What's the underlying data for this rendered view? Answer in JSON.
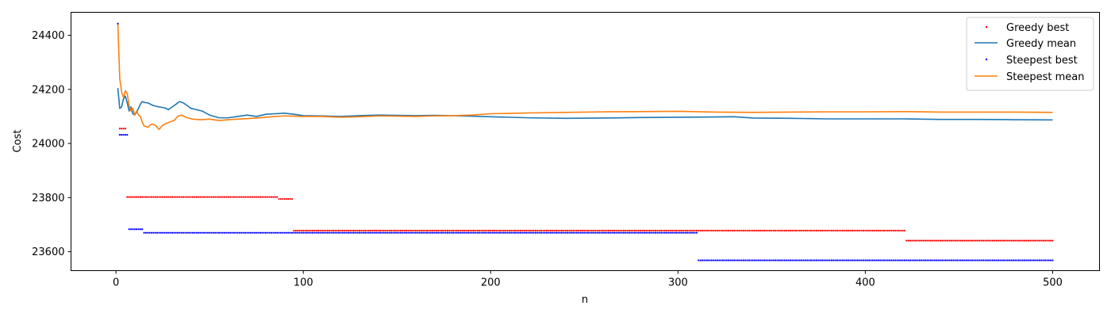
{
  "chart_data": {
    "type": "line",
    "xlabel": "n",
    "ylabel": "Cost",
    "xlim": [
      -24,
      525
    ],
    "ylim": [
      23530,
      24485
    ],
    "xticks": [
      0,
      100,
      200,
      300,
      400,
      500
    ],
    "yticks": [
      23600,
      23800,
      24000,
      24200,
      24400
    ],
    "grid": false,
    "legend_position": "top-right",
    "series": [
      {
        "name": "Greedy best",
        "kind": "points",
        "color": "#ff0000",
        "steps": [
          {
            "from": 1,
            "to": 1,
            "value": 24443
          },
          {
            "from": 2,
            "to": 5,
            "value": 24055
          },
          {
            "from": 6,
            "to": 86,
            "value": 23802
          },
          {
            "from": 87,
            "to": 94,
            "value": 23795
          },
          {
            "from": 95,
            "to": 421,
            "value": 23678
          },
          {
            "from": 422,
            "to": 500,
            "value": 23641
          }
        ]
      },
      {
        "name": "Greedy mean",
        "kind": "line",
        "color": "#1f77b4",
        "x": [
          1,
          2,
          3,
          4,
          5,
          6,
          7,
          8,
          9,
          10,
          11,
          12,
          13,
          14,
          15,
          17,
          20,
          23,
          26,
          28,
          30,
          32,
          34,
          36,
          38,
          40,
          43,
          46,
          50,
          55,
          60,
          65,
          70,
          75,
          80,
          85,
          90,
          95,
          100,
          110,
          120,
          130,
          140,
          150,
          160,
          170,
          180,
          190,
          200,
          220,
          240,
          260,
          280,
          300,
          320,
          330,
          340,
          360,
          380,
          400,
          420,
          440,
          460,
          480,
          500
        ],
        "y": [
          24205,
          24130,
          24135,
          24165,
          24175,
          24150,
          24120,
          24135,
          24110,
          24105,
          24115,
          24130,
          24145,
          24155,
          24152,
          24150,
          24140,
          24135,
          24132,
          24125,
          24135,
          24145,
          24155,
          24150,
          24140,
          24130,
          24125,
          24120,
          24105,
          24095,
          24095,
          24100,
          24105,
          24100,
          24108,
          24110,
          24112,
          24108,
          24103,
          24102,
          24100,
          24103,
          24105,
          24104,
          24103,
          24104,
          24103,
          24101,
          24099,
          24095,
          24093,
          24094,
          24096,
          24097,
          24098,
          24099,
          24094,
          24093,
          24091,
          24091,
          24091,
          24089,
          24089,
          24088,
          24087
        ]
      },
      {
        "name": "Steepest best",
        "kind": "points",
        "color": "#0000ff",
        "steps": [
          {
            "from": 1,
            "to": 1,
            "value": 24443
          },
          {
            "from": 2,
            "to": 6,
            "value": 24032
          },
          {
            "from": 7,
            "to": 14,
            "value": 23683
          },
          {
            "from": 15,
            "to": 310,
            "value": 23670
          },
          {
            "from": 311,
            "to": 500,
            "value": 23568
          }
        ]
      },
      {
        "name": "Steepest mean",
        "kind": "line",
        "color": "#ff7f0e",
        "x": [
          1,
          2,
          3,
          4,
          5,
          6,
          7,
          8,
          9,
          10,
          11,
          12,
          13,
          14,
          15,
          17,
          19,
          21,
          23,
          25,
          27,
          29,
          31,
          33,
          35,
          38,
          41,
          45,
          50,
          55,
          60,
          65,
          70,
          75,
          80,
          85,
          90,
          95,
          100,
          110,
          120,
          130,
          140,
          150,
          160,
          170,
          180,
          190,
          200,
          220,
          240,
          260,
          280,
          300,
          320,
          340,
          360,
          380,
          400,
          420,
          440,
          460,
          480,
          500
        ],
        "y": [
          24440,
          24240,
          24190,
          24170,
          24195,
          24185,
          24140,
          24120,
          24130,
          24105,
          24120,
          24105,
          24100,
          24080,
          24065,
          24060,
          24072,
          24068,
          24052,
          24068,
          24075,
          24080,
          24085,
          24100,
          24105,
          24095,
          24090,
          24088,
          24090,
          24085,
          24088,
          24090,
          24092,
          24094,
          24097,
          24100,
          24102,
          24101,
          24100,
          24100,
          24097,
          24099,
          24102,
          24101,
          24100,
          24102,
          24103,
          24105,
          24110,
          24113,
          24115,
          24117,
          24118,
          24119,
          24116,
          24115,
          24116,
          24117,
          24117,
          24118,
          24116,
          24116,
          24116,
          24115
        ]
      }
    ]
  }
}
